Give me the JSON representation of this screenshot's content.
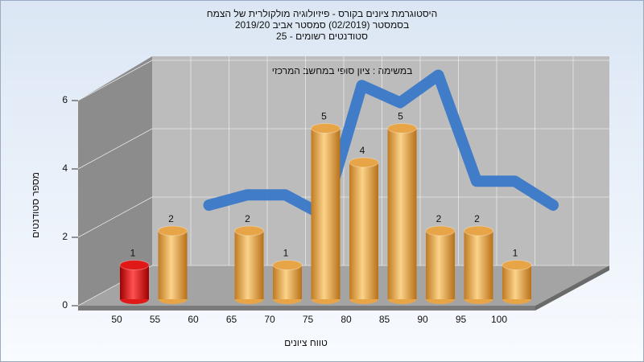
{
  "chart_data": {
    "type": "bar",
    "title": "היסטוגרמת ציונים בקורס - פיזיולוגיה מולקולרית של הצמח",
    "subtitle": "בסמסטר  (02/2019)  סמסטר אביב  2019/20",
    "subtitle2": "סטודנטים רשומים - 25",
    "annotation": "במשימה : ציון סופי במחשב המרכזי",
    "x_label": "טווח ציונים",
    "y_label": "מספר סטודנטים",
    "categories": [
      "50",
      "55",
      "60",
      "65",
      "70",
      "75",
      "80",
      "85",
      "90",
      "95",
      "100"
    ],
    "values": [
      1,
      2,
      0,
      2,
      1,
      5,
      4,
      5,
      2,
      2,
      1
    ],
    "colors": [
      "#e01818",
      "#e8a548",
      "#e8a548",
      "#e8a548",
      "#e8a548",
      "#e8a548",
      "#e8a548",
      "#e8a548",
      "#e8a548",
      "#e8a548",
      "#e8a548"
    ],
    "curve": {
      "type": "line",
      "color": "#3a78c8",
      "values": [
        null,
        2,
        2.3,
        2.3,
        1.7,
        5.5,
        5,
        5.8,
        2.7,
        2.7,
        2
      ]
    },
    "ylim": [
      0,
      6
    ],
    "yticks": [
      0,
      2,
      4,
      6
    ],
    "grid": true
  }
}
